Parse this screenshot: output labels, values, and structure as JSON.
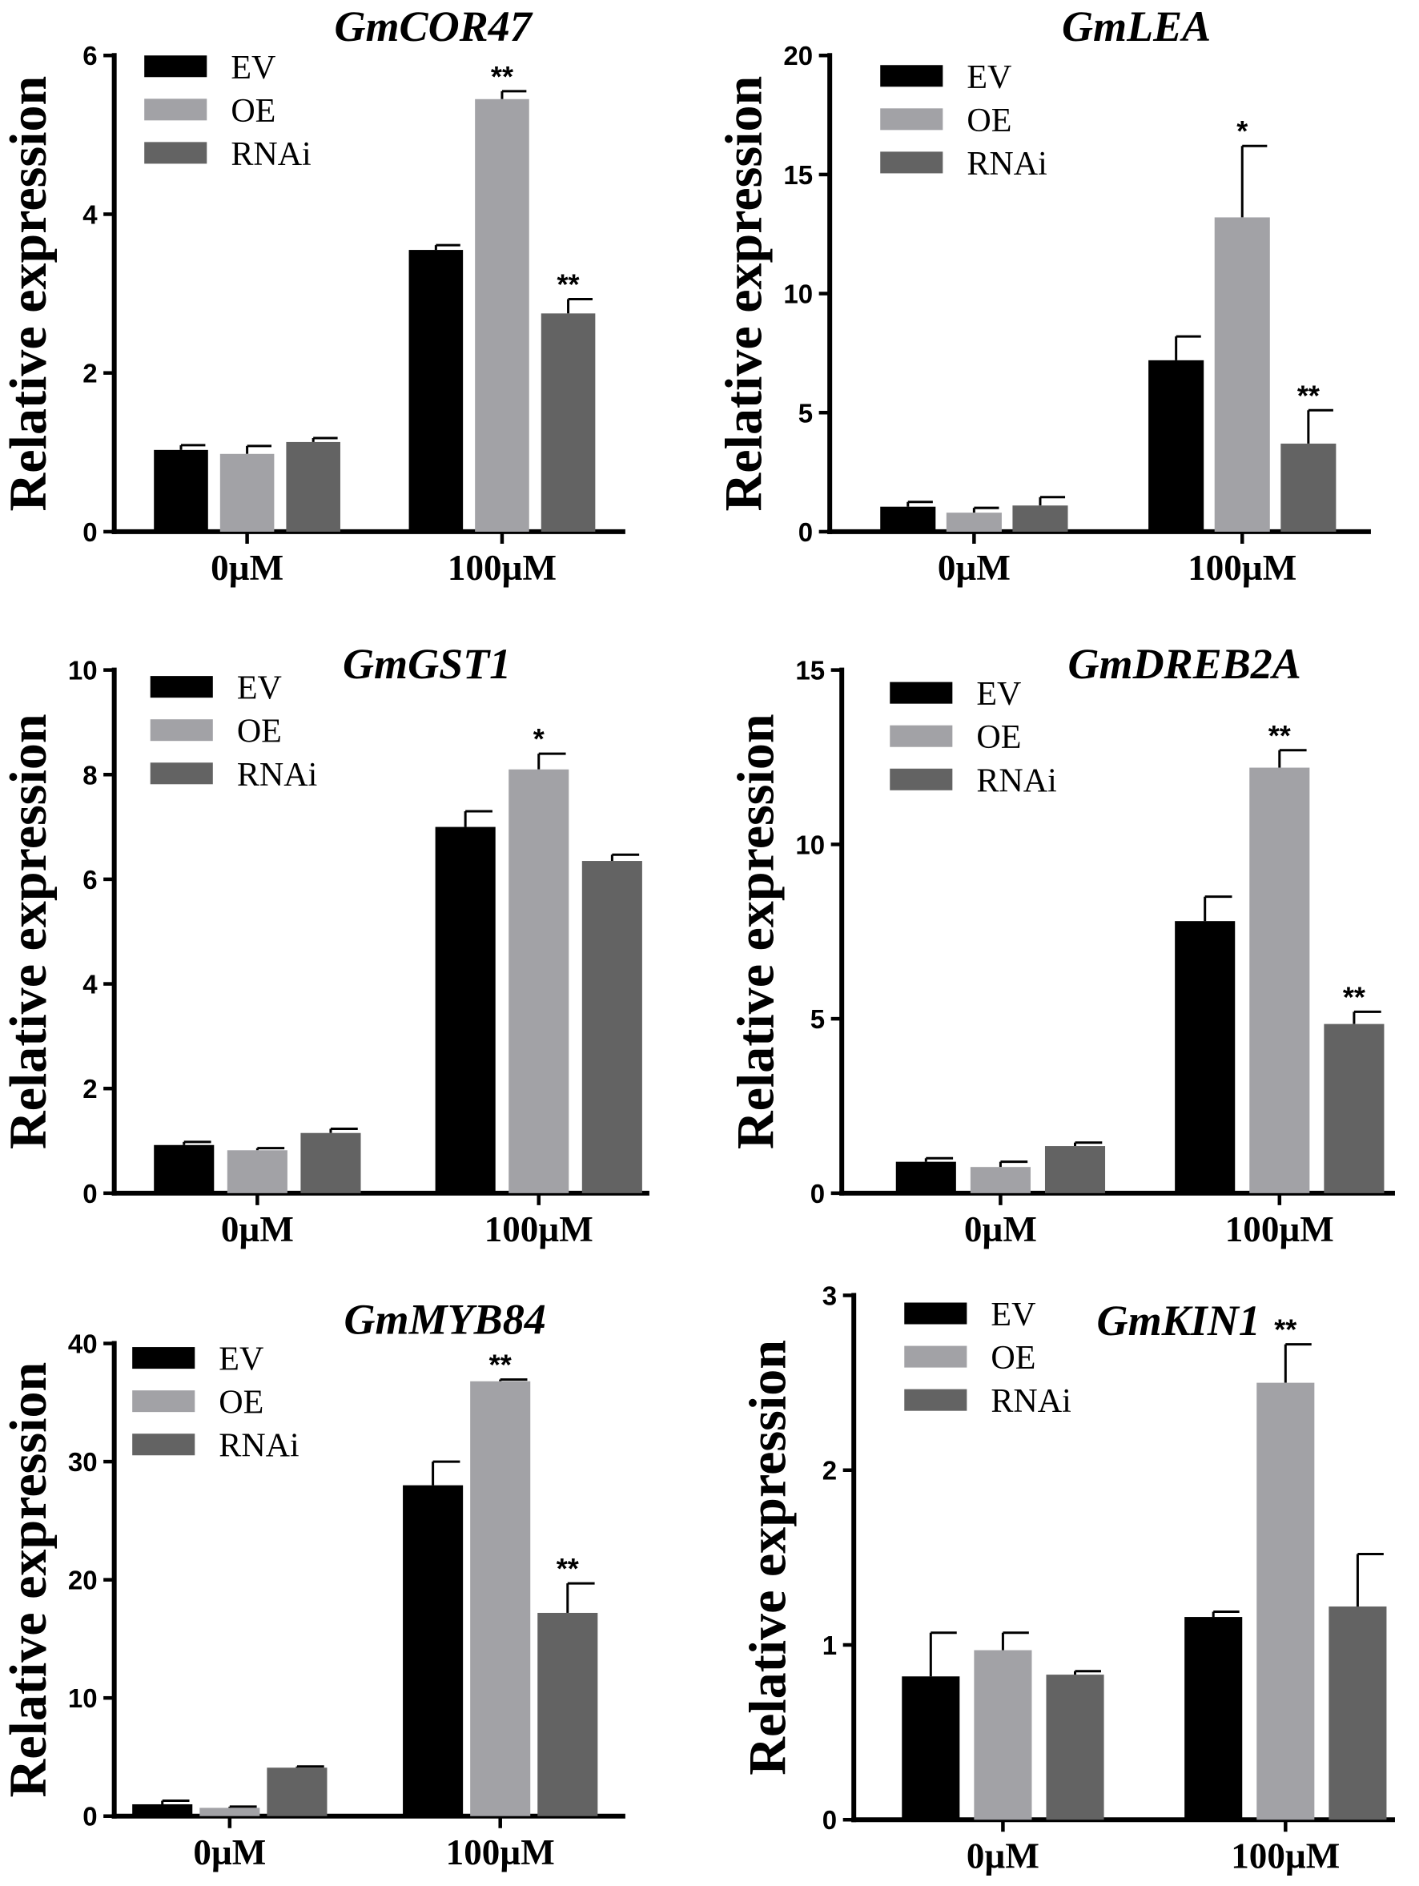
{
  "chart_data": [
    {
      "type": "bar",
      "title": "GmCOR47",
      "ylabel": "Relative expression",
      "categories": [
        "0µM",
        "100µM"
      ],
      "ylim": [
        0,
        6
      ],
      "yticks": [
        0,
        2,
        4,
        6
      ],
      "series": [
        {
          "name": "EV",
          "color": "#000000",
          "values": [
            1.03,
            3.55
          ],
          "errors": [
            0.06,
            0.06
          ],
          "sig": [
            "",
            ""
          ]
        },
        {
          "name": "OE",
          "color": "#a2a2a6",
          "values": [
            0.98,
            5.45
          ],
          "errors": [
            0.1,
            0.1
          ],
          "sig": [
            "",
            "**"
          ]
        },
        {
          "name": "RNAi",
          "color": "#636363",
          "values": [
            1.13,
            2.75
          ],
          "errors": [
            0.05,
            0.18
          ],
          "sig": [
            "",
            "**"
          ]
        }
      ]
    },
    {
      "type": "bar",
      "title": "GmLEA",
      "ylabel": "Relative expression",
      "categories": [
        "0µM",
        "100µM"
      ],
      "ylim": [
        0,
        20
      ],
      "yticks": [
        0,
        5,
        10,
        15,
        20
      ],
      "series": [
        {
          "name": "EV",
          "color": "#000000",
          "values": [
            1.05,
            7.2
          ],
          "errors": [
            0.2,
            1.0
          ],
          "sig": [
            "",
            ""
          ]
        },
        {
          "name": "OE",
          "color": "#a2a2a6",
          "values": [
            0.8,
            13.2
          ],
          "errors": [
            0.2,
            3.0
          ],
          "sig": [
            "",
            "*"
          ]
        },
        {
          "name": "RNAi",
          "color": "#636363",
          "values": [
            1.1,
            3.7
          ],
          "errors": [
            0.35,
            1.4
          ],
          "sig": [
            "",
            "**"
          ]
        }
      ]
    },
    {
      "type": "bar",
      "title": "GmGST1",
      "ylabel": "Relative expression",
      "categories": [
        "0µM",
        "100µM"
      ],
      "ylim": [
        0,
        10
      ],
      "yticks": [
        0,
        2,
        4,
        6,
        8,
        10
      ],
      "series": [
        {
          "name": "EV",
          "color": "#000000",
          "values": [
            0.92,
            7.0
          ],
          "errors": [
            0.06,
            0.3
          ],
          "sig": [
            "",
            ""
          ]
        },
        {
          "name": "OE",
          "color": "#a2a2a6",
          "values": [
            0.82,
            8.1
          ],
          "errors": [
            0.04,
            0.3
          ],
          "sig": [
            "",
            "*"
          ]
        },
        {
          "name": "RNAi",
          "color": "#636363",
          "values": [
            1.15,
            6.35
          ],
          "errors": [
            0.08,
            0.12
          ],
          "sig": [
            "",
            ""
          ]
        }
      ]
    },
    {
      "type": "bar",
      "title": "GmDREB2A",
      "ylabel": "Relative expression",
      "categories": [
        "0µM",
        "100µM"
      ],
      "ylim": [
        0,
        15
      ],
      "yticks": [
        0,
        5,
        10,
        15
      ],
      "series": [
        {
          "name": "EV",
          "color": "#000000",
          "values": [
            0.9,
            7.8
          ],
          "errors": [
            0.1,
            0.7
          ],
          "sig": [
            "",
            ""
          ]
        },
        {
          "name": "OE",
          "color": "#a2a2a6",
          "values": [
            0.75,
            12.2
          ],
          "errors": [
            0.15,
            0.5
          ],
          "sig": [
            "",
            "**"
          ]
        },
        {
          "name": "RNAi",
          "color": "#636363",
          "values": [
            1.35,
            4.85
          ],
          "errors": [
            0.1,
            0.35
          ],
          "sig": [
            "",
            "**"
          ]
        }
      ]
    },
    {
      "type": "bar",
      "title": "GmMYB84",
      "ylabel": "Relative expression",
      "categories": [
        "0µM",
        "100µM"
      ],
      "ylim": [
        0,
        40
      ],
      "yticks": [
        0,
        10,
        20,
        30,
        40
      ],
      "series": [
        {
          "name": "EV",
          "color": "#000000",
          "values": [
            1.0,
            28.0
          ],
          "errors": [
            0.3,
            2.0
          ],
          "sig": [
            "",
            ""
          ]
        },
        {
          "name": "OE",
          "color": "#a2a2a6",
          "values": [
            0.7,
            36.8
          ],
          "errors": [
            0.1,
            0.15
          ],
          "sig": [
            "",
            "**"
          ]
        },
        {
          "name": "RNAi",
          "color": "#636363",
          "values": [
            4.1,
            17.2
          ],
          "errors": [
            0.1,
            2.5
          ],
          "sig": [
            "",
            "**"
          ]
        }
      ]
    },
    {
      "type": "bar",
      "title": "GmKIN1",
      "ylabel": "Relative expression",
      "categories": [
        "0µM",
        "100µM"
      ],
      "ylim": [
        0,
        3
      ],
      "yticks": [
        0,
        1,
        2,
        3
      ],
      "series": [
        {
          "name": "EV",
          "color": "#000000",
          "values": [
            0.82,
            1.16
          ],
          "errors": [
            0.25,
            0.03
          ],
          "sig": [
            "",
            ""
          ]
        },
        {
          "name": "OE",
          "color": "#a2a2a6",
          "values": [
            0.97,
            2.5
          ],
          "errors": [
            0.1,
            0.22
          ],
          "sig": [
            "",
            "**"
          ]
        },
        {
          "name": "RNAi",
          "color": "#636363",
          "values": [
            0.83,
            1.22
          ],
          "errors": [
            0.02,
            0.3
          ],
          "sig": [
            "",
            ""
          ]
        }
      ]
    }
  ]
}
